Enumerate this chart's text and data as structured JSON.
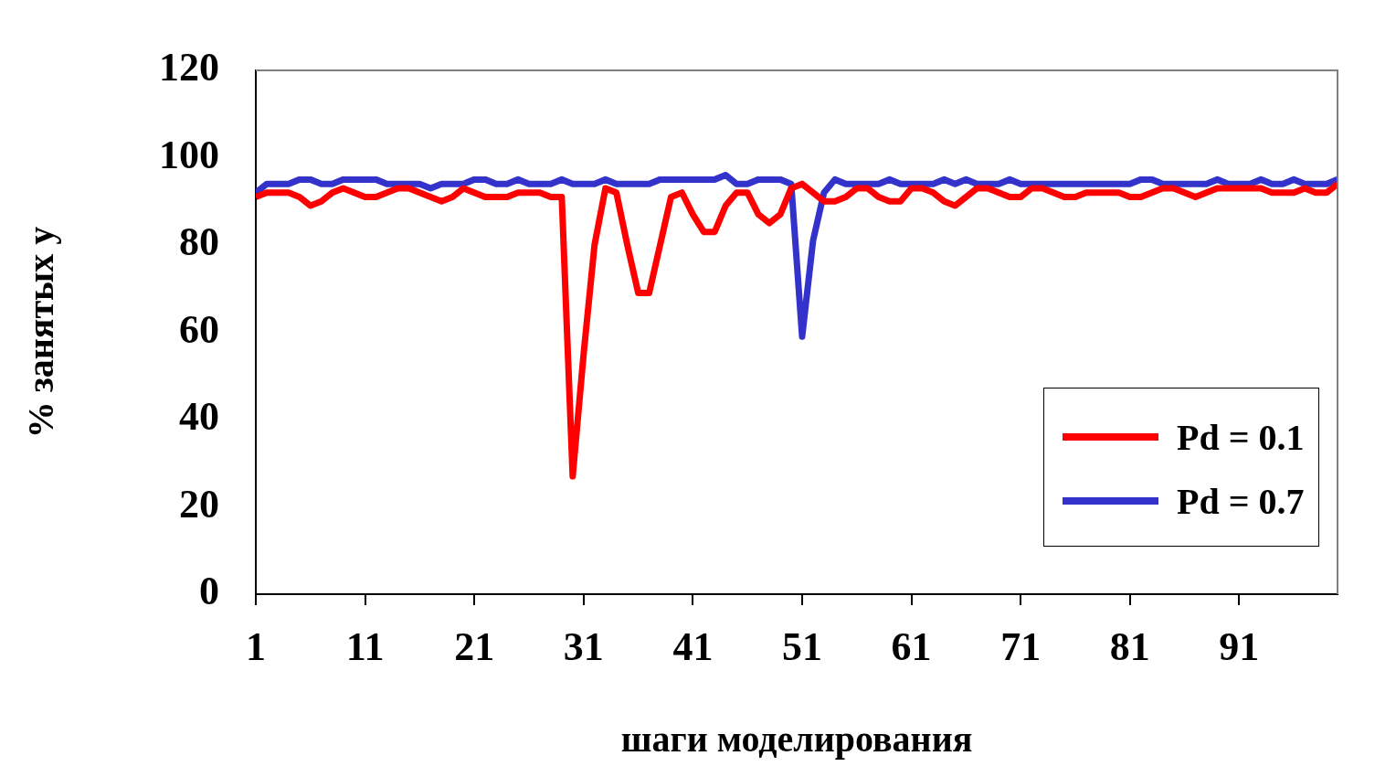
{
  "chart_data": {
    "type": "line",
    "xlabel": "шаги моделирования",
    "ylabel": "% занятых у",
    "x": [
      1,
      2,
      3,
      4,
      5,
      6,
      7,
      8,
      9,
      10,
      11,
      12,
      13,
      14,
      15,
      16,
      17,
      18,
      19,
      20,
      21,
      22,
      23,
      24,
      25,
      26,
      27,
      28,
      29,
      30,
      31,
      32,
      33,
      34,
      35,
      36,
      37,
      38,
      39,
      40,
      41,
      42,
      43,
      44,
      45,
      46,
      47,
      48,
      49,
      50,
      51,
      52,
      53,
      54,
      55,
      56,
      57,
      58,
      59,
      60,
      61,
      62,
      63,
      64,
      65,
      66,
      67,
      68,
      69,
      70,
      71,
      72,
      73,
      74,
      75,
      76,
      77,
      78,
      79,
      80,
      81,
      82,
      83,
      84,
      85,
      86,
      87,
      88,
      89,
      90,
      91,
      92,
      93,
      94,
      95,
      96,
      97,
      98,
      99,
      100
    ],
    "xlim": [
      1,
      100
    ],
    "xticks": [
      1,
      11,
      21,
      31,
      41,
      51,
      61,
      71,
      81,
      91
    ],
    "ylim": [
      0,
      120
    ],
    "yticks": [
      0,
      20,
      40,
      60,
      80,
      100,
      120
    ],
    "grid": false,
    "legend": "bottom right",
    "marker": "none",
    "line_style": "solid",
    "series": [
      {
        "name": "Pd = 0.1",
        "color": "#ff0000",
        "values": [
          91,
          92,
          92,
          92,
          91,
          89,
          90,
          92,
          93,
          92,
          91,
          91,
          92,
          93,
          93,
          92,
          91,
          90,
          91,
          93,
          92,
          91,
          91,
          91,
          92,
          92,
          92,
          91,
          91,
          27,
          55,
          80,
          93,
          92,
          80,
          69,
          69,
          80,
          91,
          92,
          87,
          83,
          83,
          89,
          92,
          92,
          87,
          85,
          87,
          93,
          94,
          92,
          90,
          90,
          91,
          93,
          93,
          91,
          90,
          90,
          93,
          93,
          92,
          90,
          89,
          91,
          93,
          93,
          92,
          91,
          91,
          93,
          93,
          92,
          91,
          91,
          92,
          92,
          92,
          92,
          91,
          91,
          92,
          93,
          93,
          92,
          91,
          92,
          93,
          93,
          93,
          93,
          93,
          92,
          92,
          92,
          93,
          92,
          92,
          94
        ]
      },
      {
        "name": "Pd = 0.7",
        "color": "#3333cc",
        "values": [
          92,
          94,
          94,
          94,
          95,
          95,
          94,
          94,
          95,
          95,
          95,
          95,
          94,
          94,
          94,
          94,
          93,
          94,
          94,
          94,
          95,
          95,
          94,
          94,
          95,
          94,
          94,
          94,
          95,
          94,
          94,
          94,
          95,
          94,
          94,
          94,
          94,
          95,
          95,
          95,
          95,
          95,
          95,
          96,
          94,
          94,
          95,
          95,
          95,
          94,
          59,
          81,
          92,
          95,
          94,
          94,
          94,
          94,
          95,
          94,
          94,
          94,
          94,
          95,
          94,
          95,
          94,
          94,
          94,
          95,
          94,
          94,
          94,
          94,
          94,
          94,
          94,
          94,
          94,
          94,
          94,
          95,
          95,
          94,
          94,
          94,
          94,
          94,
          95,
          94,
          94,
          94,
          95,
          94,
          94,
          95,
          94,
          94,
          94,
          95
        ]
      }
    ]
  }
}
